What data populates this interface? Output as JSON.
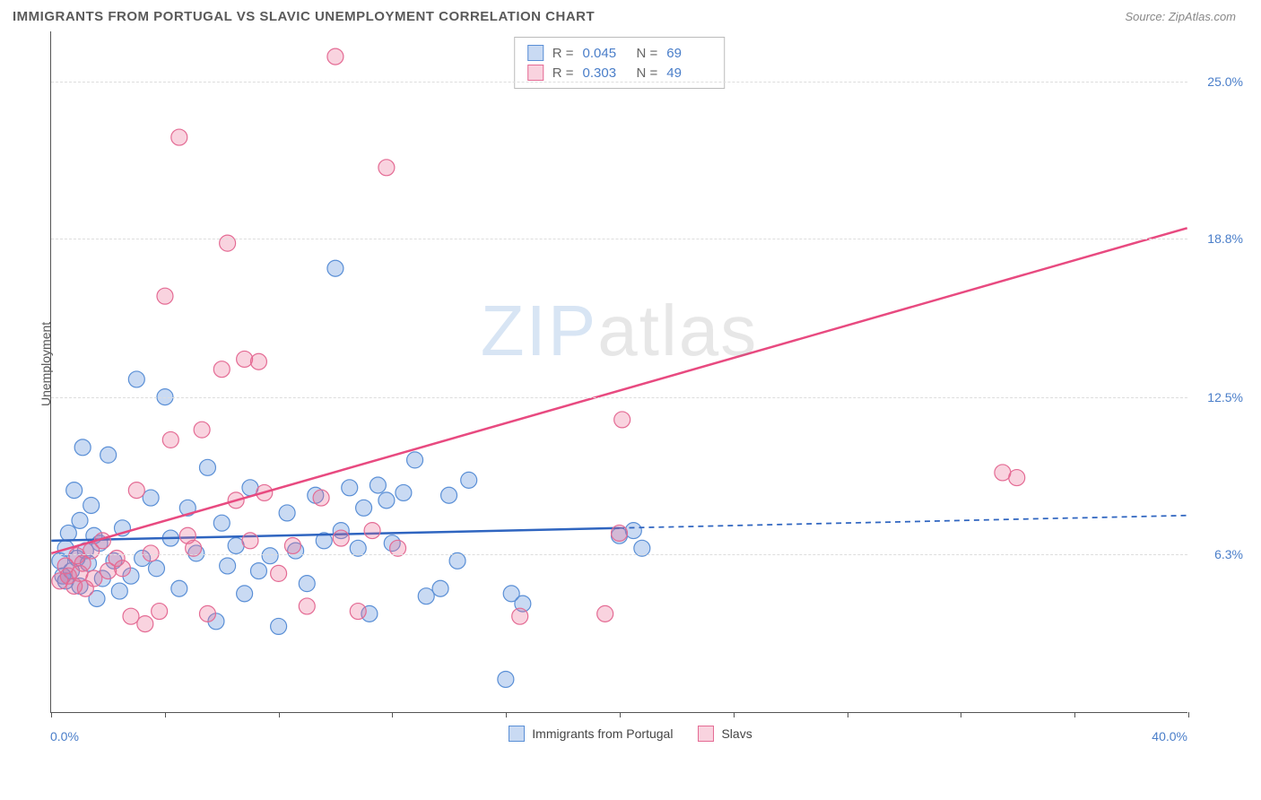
{
  "header": {
    "title": "IMMIGRANTS FROM PORTUGAL VS SLAVIC UNEMPLOYMENT CORRELATION CHART",
    "source": "Source: ZipAtlas.com"
  },
  "chart": {
    "type": "scatter",
    "y_axis_label": "Unemployment",
    "xlim": [
      0,
      40
    ],
    "ylim": [
      0,
      27
    ],
    "x_tick_positions": [
      0,
      4,
      8,
      12,
      16,
      20,
      24,
      28,
      32,
      36,
      40
    ],
    "x_min_label": "0.0%",
    "x_max_label": "40.0%",
    "y_gridlines": [
      {
        "value": 6.3,
        "label": "6.3%"
      },
      {
        "value": 12.5,
        "label": "12.5%"
      },
      {
        "value": 18.8,
        "label": "18.8%"
      },
      {
        "value": 25.0,
        "label": "25.0%"
      }
    ],
    "background_color": "#ffffff",
    "grid_color": "#dddddd",
    "axis_color": "#555555",
    "series": [
      {
        "name": "Immigrants from Portugal",
        "color_fill": "rgba(100,150,220,0.35)",
        "color_stroke": "#5a8fd6",
        "marker_radius": 9,
        "R": "0.045",
        "N": "69",
        "trend": {
          "x1": 0,
          "y1": 6.8,
          "x2": 40,
          "y2": 7.8,
          "solid_until_x": 20,
          "stroke": "#2f65c0",
          "width": 2.5
        },
        "points": [
          [
            0.3,
            6.0
          ],
          [
            0.4,
            5.4
          ],
          [
            0.5,
            6.5
          ],
          [
            0.5,
            5.2
          ],
          [
            0.6,
            7.1
          ],
          [
            0.7,
            5.6
          ],
          [
            0.8,
            8.8
          ],
          [
            0.9,
            6.1
          ],
          [
            1.0,
            7.6
          ],
          [
            1.0,
            5.0
          ],
          [
            1.1,
            10.5
          ],
          [
            1.2,
            6.4
          ],
          [
            1.3,
            5.9
          ],
          [
            1.4,
            8.2
          ],
          [
            1.5,
            7.0
          ],
          [
            1.6,
            4.5
          ],
          [
            1.7,
            6.7
          ],
          [
            1.8,
            5.3
          ],
          [
            2.0,
            10.2
          ],
          [
            2.2,
            6.0
          ],
          [
            2.4,
            4.8
          ],
          [
            2.5,
            7.3
          ],
          [
            2.8,
            5.4
          ],
          [
            3.0,
            13.2
          ],
          [
            3.2,
            6.1
          ],
          [
            3.5,
            8.5
          ],
          [
            3.7,
            5.7
          ],
          [
            4.0,
            12.5
          ],
          [
            4.2,
            6.9
          ],
          [
            4.5,
            4.9
          ],
          [
            4.8,
            8.1
          ],
          [
            5.1,
            6.3
          ],
          [
            5.5,
            9.7
          ],
          [
            5.8,
            3.6
          ],
          [
            6.0,
            7.5
          ],
          [
            6.2,
            5.8
          ],
          [
            6.5,
            6.6
          ],
          [
            6.8,
            4.7
          ],
          [
            7.0,
            8.9
          ],
          [
            7.3,
            5.6
          ],
          [
            7.7,
            6.2
          ],
          [
            8.0,
            3.4
          ],
          [
            8.3,
            7.9
          ],
          [
            8.6,
            6.4
          ],
          [
            9.0,
            5.1
          ],
          [
            9.3,
            8.6
          ],
          [
            9.6,
            6.8
          ],
          [
            10.0,
            17.6
          ],
          [
            10.2,
            7.2
          ],
          [
            10.5,
            8.9
          ],
          [
            10.8,
            6.5
          ],
          [
            11.0,
            8.1
          ],
          [
            11.2,
            3.9
          ],
          [
            11.5,
            9.0
          ],
          [
            11.8,
            8.4
          ],
          [
            12.0,
            6.7
          ],
          [
            12.4,
            8.7
          ],
          [
            12.8,
            10.0
          ],
          [
            13.2,
            4.6
          ],
          [
            13.7,
            4.9
          ],
          [
            14.0,
            8.6
          ],
          [
            14.3,
            6.0
          ],
          [
            14.7,
            9.2
          ],
          [
            16.0,
            1.3
          ],
          [
            16.2,
            4.7
          ],
          [
            16.6,
            4.3
          ],
          [
            20.0,
            7.0
          ],
          [
            20.5,
            7.2
          ],
          [
            20.8,
            6.5
          ]
        ]
      },
      {
        "name": "Slavs",
        "color_fill": "rgba(235,110,150,0.30)",
        "color_stroke": "#e46b94",
        "marker_radius": 9,
        "R": "0.303",
        "N": "49",
        "trend": {
          "x1": 0,
          "y1": 6.3,
          "x2": 40,
          "y2": 19.2,
          "solid_until_x": 40,
          "stroke": "#e84a80",
          "width": 2.5
        },
        "points": [
          [
            0.3,
            5.2
          ],
          [
            0.5,
            5.8
          ],
          [
            0.6,
            5.4
          ],
          [
            0.8,
            5.0
          ],
          [
            0.9,
            6.2
          ],
          [
            1.0,
            5.5
          ],
          [
            1.1,
            5.9
          ],
          [
            1.2,
            4.9
          ],
          [
            1.4,
            6.4
          ],
          [
            1.5,
            5.3
          ],
          [
            1.8,
            6.8
          ],
          [
            2.0,
            5.6
          ],
          [
            2.3,
            6.1
          ],
          [
            2.5,
            5.7
          ],
          [
            2.8,
            3.8
          ],
          [
            3.0,
            8.8
          ],
          [
            3.3,
            3.5
          ],
          [
            3.5,
            6.3
          ],
          [
            3.8,
            4.0
          ],
          [
            4.0,
            16.5
          ],
          [
            4.2,
            10.8
          ],
          [
            4.5,
            22.8
          ],
          [
            4.8,
            7.0
          ],
          [
            5.0,
            6.5
          ],
          [
            5.3,
            11.2
          ],
          [
            5.5,
            3.9
          ],
          [
            6.0,
            13.6
          ],
          [
            6.2,
            18.6
          ],
          [
            6.5,
            8.4
          ],
          [
            6.8,
            14.0
          ],
          [
            7.0,
            6.8
          ],
          [
            7.3,
            13.9
          ],
          [
            7.5,
            8.7
          ],
          [
            8.0,
            5.5
          ],
          [
            8.5,
            6.6
          ],
          [
            9.0,
            4.2
          ],
          [
            9.5,
            8.5
          ],
          [
            10.0,
            26.0
          ],
          [
            10.2,
            6.9
          ],
          [
            10.8,
            4.0
          ],
          [
            11.3,
            7.2
          ],
          [
            11.8,
            21.6
          ],
          [
            12.2,
            6.5
          ],
          [
            16.5,
            3.8
          ],
          [
            19.5,
            3.9
          ],
          [
            20.0,
            7.1
          ],
          [
            20.1,
            11.6
          ],
          [
            33.5,
            9.5
          ],
          [
            34.0,
            9.3
          ]
        ]
      }
    ],
    "legend_bottom": [
      {
        "label": "Immigrants from Portugal",
        "fill": "rgba(100,150,220,0.35)",
        "stroke": "#5a8fd6"
      },
      {
        "label": "Slavs",
        "fill": "rgba(235,110,150,0.30)",
        "stroke": "#e46b94"
      }
    ]
  },
  "watermark": {
    "part1": "ZIP",
    "part2": "atlas"
  }
}
